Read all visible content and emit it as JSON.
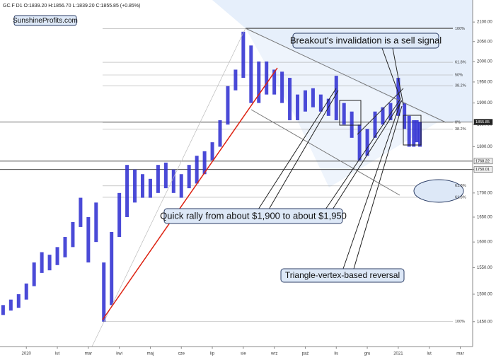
{
  "chart_data": {
    "type": "range-bar",
    "header": "GC.F  D1  O:1839.20  H:1856.70  L:1839.20  C:1855.85  (+0.85%)",
    "brand": "SunshineProfits.com",
    "annotations": [
      "Breakout's invalidation is a sell signal",
      "Quick rally from about $1,900 to about $1,950",
      "Triangle-vertex-based reversal"
    ],
    "log_scale": true,
    "color": "#2a2ad0",
    "x": [
      -0.75,
      -0.5,
      -0.25,
      0,
      0.25,
      0.5,
      0.75,
      1,
      1.25,
      1.5,
      1.75,
      2,
      2.25,
      2.5,
      2.75,
      3,
      3.25,
      3.5,
      3.75,
      4,
      4.25,
      4.5,
      4.75,
      5,
      5.25,
      5.5,
      5.75,
      6,
      6.25,
      6.5,
      6.75,
      7,
      7.25,
      7.5,
      7.75,
      8,
      8.25,
      8.5,
      8.75,
      9,
      9.25,
      9.5,
      9.75,
      10,
      10.25,
      10.5,
      10.75,
      11,
      11.25,
      11.5,
      11.75,
      12,
      12.2,
      12.35,
      12.5,
      12.6,
      12.7
    ],
    "low": [
      1462,
      1470,
      1475,
      1490,
      1515,
      1540,
      1545,
      1555,
      1570,
      1590,
      1630,
      1560,
      1600,
      1450,
      1480,
      1610,
      1650,
      1680,
      1690,
      1690,
      1700,
      1710,
      1700,
      1690,
      1710,
      1720,
      1740,
      1770,
      1800,
      1850,
      1930,
      1960,
      1900,
      1900,
      1920,
      1920,
      1900,
      1860,
      1860,
      1880,
      1890,
      1880,
      1870,
      1860,
      1850,
      1820,
      1770,
      1780,
      1820,
      1850,
      1860,
      1870,
      1840,
      1800,
      1800,
      1810,
      1800
    ],
    "high": [
      1480,
      1490,
      1500,
      1520,
      1560,
      1580,
      1575,
      1590,
      1610,
      1640,
      1690,
      1650,
      1680,
      1560,
      1620,
      1700,
      1760,
      1750,
      1740,
      1730,
      1760,
      1765,
      1750,
      1740,
      1760,
      1780,
      1790,
      1810,
      1860,
      1940,
      1980,
      2075,
      2040,
      2000,
      2000,
      1980,
      1975,
      1960,
      1920,
      1930,
      1935,
      1920,
      1910,
      1965,
      1900,
      1880,
      1850,
      1840,
      1880,
      1890,
      1900,
      1960,
      1900,
      1870,
      1860,
      1860,
      1856
    ],
    "xlim": [
      -0.85,
      14.4
    ],
    "xticks": [
      {
        "value": 0,
        "label": "2020"
      },
      {
        "value": 1,
        "label": "lut"
      },
      {
        "value": 2,
        "label": "mar"
      },
      {
        "value": 3,
        "label": "kwi"
      },
      {
        "value": 4,
        "label": "maj"
      },
      {
        "value": 5,
        "label": "cze"
      },
      {
        "value": 6,
        "label": "lip"
      },
      {
        "value": 7,
        "label": "sie"
      },
      {
        "value": 8,
        "label": "wrz"
      },
      {
        "value": 9,
        "label": "paź"
      },
      {
        "value": 10,
        "label": "lis"
      },
      {
        "value": 11,
        "label": "gru"
      },
      {
        "value": 12,
        "label": "2021"
      },
      {
        "value": 13,
        "label": "lut"
      },
      {
        "value": 14,
        "label": "mar"
      }
    ],
    "ylim": [
      1406,
      2158
    ],
    "yticks": [
      {
        "value": 1450,
        "label": "1450.00"
      },
      {
        "value": 1500,
        "label": "1500.00"
      },
      {
        "value": 1550,
        "label": "1550.00"
      },
      {
        "value": 1600,
        "label": "1600.00"
      },
      {
        "value": 1650,
        "label": "1650.00"
      },
      {
        "value": 1700,
        "label": "1700.00"
      },
      {
        "value": 1750,
        "label": "1750.00"
      },
      {
        "value": 1800,
        "label": "1800.00"
      },
      {
        "value": 1850,
        "label": "1850.00"
      },
      {
        "value": 1900,
        "label": "1900.00"
      },
      {
        "value": 1950,
        "label": "1950.00"
      },
      {
        "value": 2000,
        "label": "2000.00"
      },
      {
        "value": 2050,
        "label": "2050.00"
      },
      {
        "value": 2100,
        "label": "2100.00"
      }
    ],
    "price_labels": [
      1855.85,
      1768.22,
      1750.01
    ],
    "levels": [
      {
        "label": "100%",
        "value": 2083
      },
      {
        "label": "61.8%",
        "value": 1998
      },
      {
        "label": "50%",
        "value": 1967
      },
      {
        "label": "38.2%",
        "value": 1941
      },
      {
        "label": "0%",
        "value": 1855
      },
      {
        "label": "38.2%",
        "value": 1840
      },
      {
        "label": "61.8%",
        "value": 1715
      },
      {
        "label": "61.8%",
        "value": 1691
      },
      {
        "label": "100%",
        "value": 1450
      }
    ]
  }
}
